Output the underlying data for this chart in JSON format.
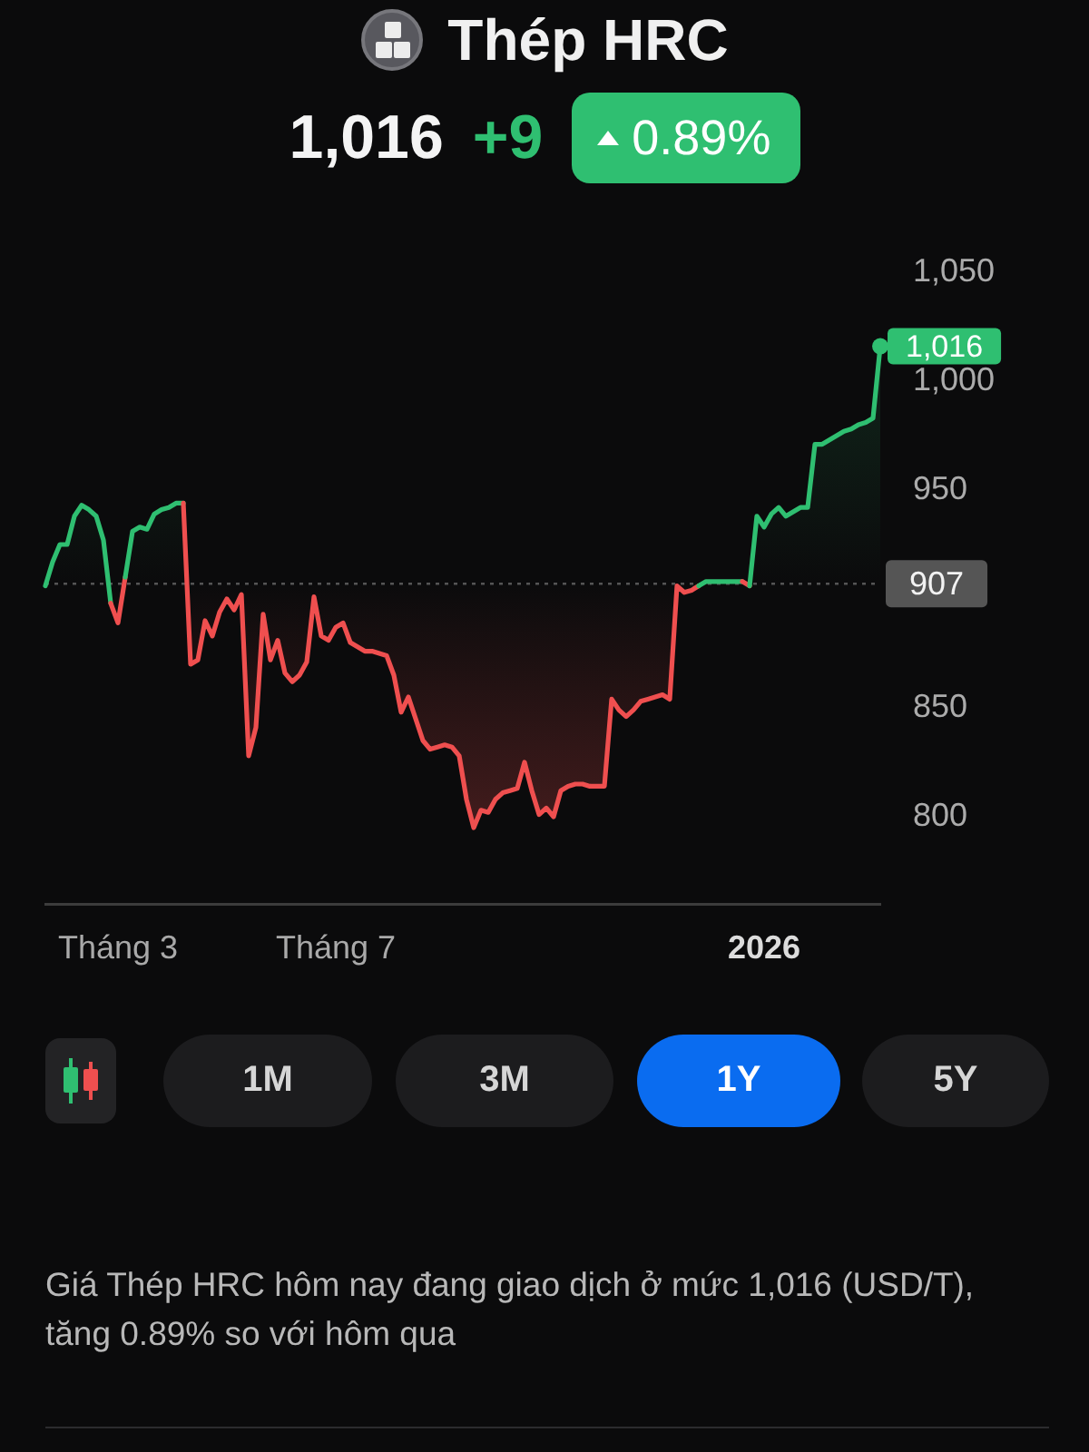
{
  "chart_data": {
    "type": "area",
    "title": "Thép HRC",
    "categories": [
      null,
      null,
      null,
      null,
      null,
      null,
      null,
      null,
      null,
      null,
      "Tháng 3",
      null,
      null,
      null,
      null,
      null,
      null,
      null,
      null,
      null,
      null,
      null,
      null,
      null,
      null,
      null,
      null,
      null,
      null,
      null,
      null,
      null,
      null,
      null,
      null,
      null,
      null,
      null,
      null,
      null,
      "Tháng 7",
      null,
      null,
      null,
      null,
      null,
      null,
      null,
      null,
      null,
      null,
      null,
      null,
      null,
      null,
      null,
      null,
      null,
      null,
      null,
      null,
      null,
      null,
      null,
      null,
      null,
      null,
      null,
      null,
      null,
      null,
      null,
      null,
      null,
      null,
      null,
      null,
      null,
      null,
      null,
      null,
      null,
      null,
      null,
      null,
      null,
      null,
      null,
      null,
      null,
      null,
      null,
      null,
      null,
      null,
      null,
      null,
      null,
      null,
      "2026",
      null,
      null,
      null,
      null,
      null,
      null,
      null,
      null,
      null,
      null,
      null,
      null,
      null,
      null,
      null,
      null
    ],
    "series": [
      {
        "values": [
          906,
          917,
          925,
          925,
          938,
          943,
          941,
          938,
          927,
          898,
          889,
          910,
          931,
          933,
          932,
          939,
          941,
          942,
          944,
          944,
          870,
          872,
          890,
          883,
          894,
          900,
          895,
          902,
          828,
          841,
          893,
          872,
          881,
          866,
          862,
          865,
          871,
          901,
          883,
          881,
          887,
          889,
          880,
          878,
          876,
          876,
          875,
          874,
          865,
          848,
          855,
          845,
          835,
          831,
          832,
          833,
          832,
          828,
          808,
          795,
          803,
          802,
          808,
          811,
          812,
          813,
          825,
          812,
          801,
          804,
          800,
          812,
          814,
          815,
          815,
          814,
          814,
          814,
          854,
          849,
          846,
          849,
          853,
          854,
          855,
          856,
          854,
          906,
          903,
          904,
          906,
          908,
          908,
          908,
          908,
          908,
          908,
          906,
          938,
          933,
          939,
          942,
          938,
          940,
          942,
          942,
          971,
          971,
          973,
          975,
          977,
          978,
          980,
          981,
          983,
          1016
        ],
        "colors": [
          "#ef4f4f",
          "#2fbf71",
          "#2fbf71",
          "#2fbf71",
          "#2fbf71",
          "#2fbf71",
          "#2fbf71",
          "#2fbf71",
          "#2fbf71",
          "#ef4f4f",
          "#ef4f4f",
          "#2fbf71",
          "#2fbf71",
          "#2fbf71",
          "#2fbf71",
          "#2fbf71",
          "#2fbf71",
          "#2fbf71",
          "#2fbf71",
          "#2fbf71",
          "#ef4f4f",
          "#ef4f4f",
          "#ef4f4f",
          "#ef4f4f",
          "#ef4f4f",
          "#ef4f4f",
          "#ef4f4f",
          "#ef4f4f",
          "#ef4f4f",
          "#ef4f4f",
          "#ef4f4f",
          "#ef4f4f",
          "#ef4f4f",
          "#ef4f4f",
          "#ef4f4f",
          "#ef4f4f",
          "#ef4f4f",
          "#ef4f4f",
          "#ef4f4f",
          "#ef4f4f",
          "#ef4f4f",
          "#ef4f4f",
          "#ef4f4f",
          "#ef4f4f",
          "#ef4f4f",
          "#ef4f4f",
          "#ef4f4f",
          "#ef4f4f",
          "#ef4f4f",
          "#ef4f4f",
          "#ef4f4f",
          "#ef4f4f",
          "#ef4f4f",
          "#ef4f4f",
          "#ef4f4f",
          "#ef4f4f",
          "#ef4f4f",
          "#ef4f4f",
          "#ef4f4f",
          "#ef4f4f",
          "#ef4f4f",
          "#ef4f4f",
          "#ef4f4f",
          "#ef4f4f",
          "#ef4f4f",
          "#ef4f4f",
          "#ef4f4f",
          "#ef4f4f",
          "#ef4f4f",
          "#ef4f4f",
          "#ef4f4f",
          "#ef4f4f",
          "#ef4f4f",
          "#ef4f4f",
          "#ef4f4f",
          "#ef4f4f",
          "#ef4f4f",
          "#ef4f4f",
          "#ef4f4f",
          "#ef4f4f",
          "#ef4f4f",
          "#ef4f4f",
          "#ef4f4f",
          "#ef4f4f",
          "#ef4f4f",
          "#ef4f4f",
          "#ef4f4f",
          "#ef4f4f",
          "#ef4f4f",
          "#ef4f4f",
          "#ef4f4f",
          "#2fbf71",
          "#2fbf71",
          "#2fbf71",
          "#2fbf71",
          "#2fbf71",
          "#2fbf71",
          "#ef4f4f",
          "#2fbf71",
          "#2fbf71",
          "#2fbf71",
          "#2fbf71",
          "#2fbf71",
          "#2fbf71",
          "#2fbf71",
          "#2fbf71",
          "#2fbf71",
          "#2fbf71",
          "#2fbf71",
          "#2fbf71",
          "#2fbf71",
          "#2fbf71",
          "#2fbf71",
          "#2fbf71",
          "#2fbf71",
          "#2fbf71"
        ],
        "value_labels": [
          null,
          null,
          null,
          null,
          null,
          null,
          null,
          null,
          null,
          null,
          null,
          null,
          null,
          null,
          null,
          null,
          null,
          null,
          null,
          null,
          null,
          null,
          null,
          null,
          null,
          null,
          null,
          null,
          null,
          null,
          null,
          null,
          null,
          null,
          null,
          null,
          null,
          null,
          null,
          null,
          null,
          null,
          null,
          null,
          null,
          null,
          null,
          null,
          null,
          null,
          null,
          null,
          null,
          null,
          null,
          null,
          null,
          null,
          null,
          null,
          null,
          null,
          null,
          null,
          null,
          null,
          null,
          null,
          null,
          null,
          null,
          null,
          null,
          null,
          null,
          null,
          null,
          null,
          null,
          null,
          null,
          null,
          null,
          null,
          null,
          null,
          null,
          null,
          null,
          null,
          null,
          null,
          null,
          null,
          null,
          null,
          null,
          null,
          null,
          null,
          null,
          null,
          null,
          null,
          null,
          null,
          null,
          null,
          null,
          null,
          null,
          null,
          null,
          null,
          null,
          "1,016"
        ]
      }
    ],
    "ylim": [
      760,
      1050
    ],
    "yticks": [
      800,
      850,
      950,
      {
        "value": 1000,
        "label": "1,000"
      },
      {
        "value": 1050,
        "label": "1,050"
      }
    ],
    "ref_lines": [
      {
        "axis": "y",
        "value": 907,
        "label": "907",
        "color": "#555555",
        "line_style": "dotted"
      }
    ],
    "annotations": [
      "1,016",
      "+9",
      "0.89%",
      "1M",
      "3M",
      "1Y",
      "5Y",
      "Giá Thép HRC hôm nay đang giao dịch ở mức 1,016 (USD/T), tăng 0.89% so với hôm qua"
    ]
  }
}
